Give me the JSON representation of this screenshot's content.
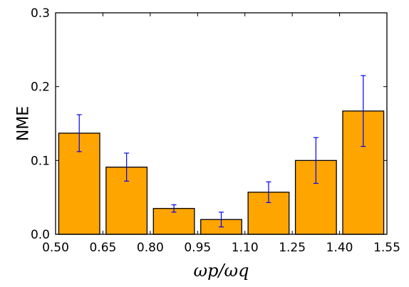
{
  "chart_data": {
    "type": "bar",
    "title": "",
    "xlabel": "ωp/ωq",
    "ylabel": "NME",
    "xlim": [
      0.5,
      1.55
    ],
    "ylim": [
      0,
      0.3
    ],
    "x_ticks": [
      "0.50",
      "0.65",
      "0.80",
      "0.95",
      "1.10",
      "1.25",
      "1.40",
      "1.55"
    ],
    "y_ticks": [
      "0.0",
      "0.1",
      "0.2",
      "0.3"
    ],
    "grid": false,
    "bars": [
      {
        "x_start": 0.51,
        "x_end": 0.64,
        "value": 0.137,
        "error": 0.025
      },
      {
        "x_start": 0.66,
        "x_end": 0.79,
        "value": 0.091,
        "error": 0.019
      },
      {
        "x_start": 0.81,
        "x_end": 0.94,
        "value": 0.035,
        "error": 0.005
      },
      {
        "x_start": 0.96,
        "x_end": 1.09,
        "value": 0.02,
        "error": 0.01
      },
      {
        "x_start": 1.11,
        "x_end": 1.24,
        "value": 0.057,
        "error": 0.014
      },
      {
        "x_start": 1.26,
        "x_end": 1.39,
        "value": 0.1,
        "error": 0.031
      },
      {
        "x_start": 1.41,
        "x_end": 1.54,
        "value": 0.167,
        "error": 0.048
      }
    ],
    "colors": {
      "bar": "#FFA500",
      "bar_edge": "#000000",
      "error_bar": "#0000FF"
    }
  }
}
